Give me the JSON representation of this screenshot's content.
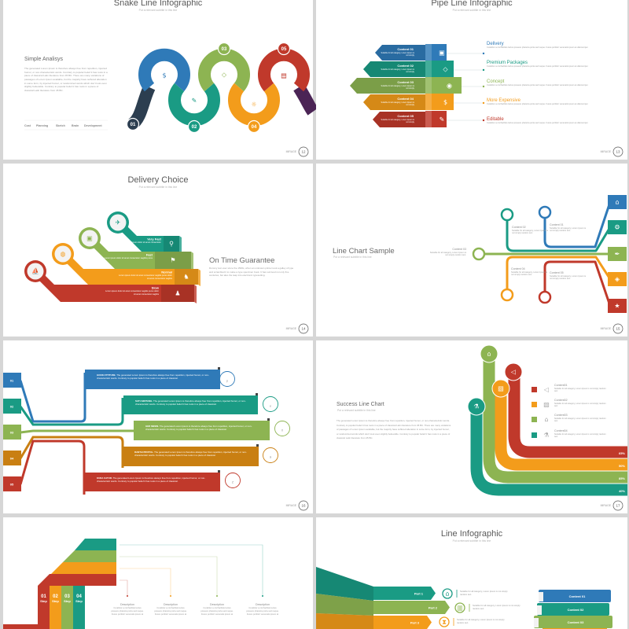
{
  "brand": "MIRAGE",
  "colors": {
    "blue": "#2f7ab8",
    "teal": "#1a9b84",
    "green": "#8db452",
    "orange": "#f39c1b",
    "red": "#c0392b",
    "navy": "#2c3e50",
    "purple": "#4b2455",
    "dark_orange": "#c97f12"
  },
  "slides": [
    {
      "page": "12",
      "title": "Snake Line Infographic",
      "subtitle": "Put a relevant subtitle in this line",
      "heading": "Simple Analisys",
      "body": "The generated Lorem Ipsum is therefore always free from repetition, injected humor, or non-characteristic words. Contrary to popular belief it has roots in a piece of classical Latin literature from 45 BC. There are many variations of passages of Lorem Ipsum available, but the majority have suffered alteration in some form, by injected humor, or randomized words which don't look even slightly believable. Contrary to popular belief it has roots in a piece of classical Latin literature from 45 BC.",
      "legend": [
        "Cost",
        "Planning",
        "Sketch",
        "Brain",
        "Development"
      ],
      "steps": [
        "01",
        "02",
        "03",
        "04",
        "05"
      ],
      "icons": [
        "money-icon",
        "pencil-icon",
        "diamond-icon",
        "sun-icon",
        "book-icon"
      ]
    },
    {
      "page": "13",
      "title": "Pipe Line Infographic",
      "subtitle": "Put a relevant subtitle in this line",
      "blocks": [
        {
          "label": "Content 01",
          "text": "Suitable for all category, Lorem Ipsum is not simply",
          "icon": "truck-icon"
        },
        {
          "label": "Content 02",
          "text": "Suitable for all category, Lorem Ipsum is not simply",
          "icon": "diamond-icon"
        },
        {
          "label": "Content 03",
          "text": "Suitable for all category, Lorem Ipsum is not simply",
          "icon": "camera-icon"
        },
        {
          "label": "Content 04",
          "text": "Suitable for all category, Lorem Ipsum is not simply",
          "icon": "money-icon"
        },
        {
          "label": "Content 05",
          "text": "Suitable for all category, Lorem Ipsum is not simply",
          "icon": "pencil-icon"
        }
      ],
      "items": [
        {
          "title": "Delivery",
          "text": "Curabitur a nisl facilisis lectus posuere pharetra porta sed neque. Fusce porttitor venenatis ipsum at ullamcorper."
        },
        {
          "title": "Premium Packages",
          "text": "Curabitur a nisl facilisis lectus posuere pharetra porta sed neque. Fusce porttitor venenatis ipsum at ullamcorper."
        },
        {
          "title": "Concept",
          "text": "Curabitur a nisl facilisis lectus posuere pharetra porta sed neque. Fusce porttitor venenatis ipsum at ullamcorper."
        },
        {
          "title": "More Expensive",
          "text": "Curabitur a nisl facilisis lectus posuere pharetra porta sed neque. Fusce porttitor venenatis ipsum at ullamcorper."
        },
        {
          "title": "Editable",
          "text": "Curabitur a nisl facilisis lectus posuere pharetra porta sed neque. Fusce porttitor venenatis ipsum at ullamcorper."
        }
      ]
    },
    {
      "page": "14",
      "title": "Delivery Choice",
      "subtitle": "Put a relevant subtitle in this line",
      "heading": "On Time Guarantee",
      "body": "Dummy text ever since the 1500s, when an unknown printer took a galley of type and scrambled it to make a type specimen book. It has survived not only five centuries, but also the leap into electronic typesetting.",
      "options": [
        {
          "label": "Very Fast",
          "text": "Lorem ipsum dolor sit amet consectetur",
          "icon": "airplane-icon",
          "box_icon": "cyclist-icon"
        },
        {
          "label": "Fast",
          "text": "Lorem ipsum dolor sit amet consectetur sagittis purus",
          "icon": "truck-icon",
          "box_icon": "runner-icon"
        },
        {
          "label": "Normal",
          "text": "Lorem ipsum dolor sit amet consectetur sagittis purus dolor sit amet consectetur sagittis",
          "icon": "tanker-icon",
          "box_icon": "walker-icon"
        },
        {
          "label": "Slow",
          "text": "Lorem ipsum dolor sit amet consectetur sagittis purus dolor sit amet consectetur sagittis",
          "icon": "ship-icon",
          "box_icon": "person-icon"
        }
      ]
    },
    {
      "page": "15",
      "title": "Line Chart Sample",
      "subtitle": "Put a relevant subtitle in this line",
      "nodes": [
        {
          "num": "1",
          "label": "Content 01",
          "text": "Suitable for all category, Lorem Ipsum is not simply random text."
        },
        {
          "num": "2",
          "label": "Content 02",
          "text": "Suitable for all category, Lorem Ipsum is not simply random text."
        },
        {
          "num": "3",
          "label": "Content 03",
          "text": "Suitable for all category, Lorem Ipsum is not simply random text."
        },
        {
          "num": "4",
          "label": "Content 04",
          "text": "Suitable for all category, Lorem Ipsum is not simply random text."
        },
        {
          "num": "5",
          "label": "Content 05",
          "text": "Suitable for all category, Lorem Ipsum is not simply random text."
        }
      ],
      "tab_icons": [
        "brush-icon",
        "gear-icon",
        "pen-nib-icon",
        "tag-icon",
        "star-icon"
      ]
    },
    {
      "page": "16",
      "rows": [
        {
          "num": "01",
          "lead": "GOOD ATTITUDE.",
          "text": "The generated Lorem Ipsum is therefore always free from repetition, injected humor, or non-characteristic words. Contrary to popular belief it has roots in a piece of classical.",
          "letter": "p"
        },
        {
          "num": "02",
          "lead": "SATU BINTANG.",
          "text": "The generated Lorem Ipsum is therefore always free from repetition, injected humor, or non-characteristic words. Contrary to popular belief it has roots in a piece of classical.",
          "letter": "e"
        },
        {
          "num": "03",
          "lead": "GER MESIN.",
          "text": "The generated Lorem Ipsum is therefore always free from repetition, injected humor, or non-characteristic words. Contrary to popular belief it has roots in a piece of classical.",
          "letter": "X"
        },
        {
          "num": "04",
          "lead": "RANTAI PROTOL.",
          "text": "The generated Lorem Ipsum is therefore always free from repetition, injected humor, or non-characteristic words. Contrary to popular belief it has roots in a piece of classical.",
          "letter": "ä"
        },
        {
          "num": "05",
          "lead": "KUDA CATUR.",
          "text": "The generated Lorem Ipsum is therefore always free from repetition, injected humor, or non-characteristic words. Contrary to popular belief it has roots in a piece of classical.",
          "letter": "Z"
        }
      ]
    },
    {
      "page": "17",
      "title": "Success Line Chart",
      "subtitle": "Put a relevant subtitle in this line",
      "body": "The generated Lorem Ipsum is therefore always free from repetition, injected humor, or non-characteristic words. Contrary to popular belief it has roots in a piece of classical Latin literature from 45 BC. There are many variations of passages of Lorem Ipsum available, but the majority have suffered alteration in some form, by injected humor, or randomized words which don't look even slightly believable. Contrary to popular belief it has roots in a piece of classical Latin literature from 45 BC.",
      "legend": [
        {
          "label": "Content01",
          "text": "Suitable for all category, Lorem Ipsum is not simply random text.",
          "icon": "megaphone-icon"
        },
        {
          "label": "Content02",
          "text": "Suitable for all category, Lorem Ipsum is not simply random text.",
          "icon": "chart-icon"
        },
        {
          "label": "Content03",
          "text": "Suitable for all category, Lorem Ipsum is not simply random text.",
          "icon": "shop-icon"
        },
        {
          "label": "Content04",
          "text": "Suitable for all category, Lorem Ipsum is not simply random text.",
          "icon": "flask-icon"
        }
      ],
      "percents": [
        "65%",
        "50%",
        "85%",
        "40%"
      ]
    },
    {
      "steps": [
        "01",
        "02",
        "03",
        "04"
      ],
      "step_label": "Step",
      "descriptions": [
        {
          "title": "Description",
          "text": "Curabitur a nisl facilisis lectus posuere pharetra porta sed neque. Fusce porttitor venenatis ipsum at"
        },
        {
          "title": "Description",
          "text": "Curabitur a nisl facilisis lectus posuere pharetra porta sed neque. Fusce porttitor venenatis ipsum at"
        },
        {
          "title": "Description",
          "text": "Curabitur a nisl facilisis lectus posuere pharetra porta sed neque. Fusce porttitor venenatis ipsum at"
        },
        {
          "title": "Description",
          "text": "Curabitur a nisl facilisis lectus posuere pharetra porta sed neque. Fusce porttitor venenatis ipsum at"
        }
      ]
    },
    {
      "title": "Line Infographic",
      "subtitle": "Put a relevant subtitle in this line",
      "parts": [
        {
          "label": "Part 1",
          "text": "Suitable for all category, Lorem Ipsum is not simply random text.",
          "icon": "home-icon"
        },
        {
          "label": "Part 2",
          "text": "Suitable for all category, Lorem Ipsum is not simply random text.",
          "icon": "building-icon"
        },
        {
          "label": "Part 3",
          "text": "Suitable for all category, Lorem Ipsum is not simply random text.",
          "icon": "hourglass-icon"
        }
      ],
      "books": [
        "Content 01",
        "Content 02",
        "Content 03"
      ]
    }
  ]
}
